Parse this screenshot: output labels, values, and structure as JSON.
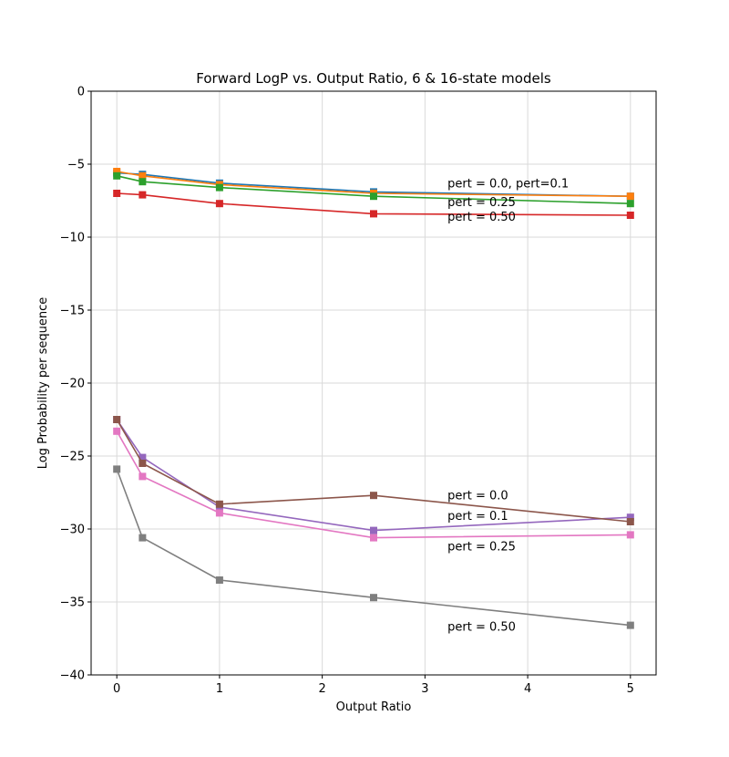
{
  "chart_data": {
    "type": "line",
    "title": "Forward LogP vs. Output Ratio, 6 & 16-state models",
    "xlabel": "Output Ratio",
    "ylabel": "Log Probability per sequence",
    "xlim": [
      -0.25,
      5.25
    ],
    "ylim": [
      -40,
      0
    ],
    "xticks": [
      0,
      1,
      2,
      3,
      4,
      5
    ],
    "yticks": [
      0,
      -5,
      -10,
      -15,
      -20,
      -25,
      -30,
      -35,
      -40
    ],
    "grid": true,
    "marker": "square",
    "x": [
      0,
      0.25,
      1,
      2.5,
      5
    ],
    "series": [
      {
        "color": "#1f77b4",
        "values": [
          -5.6,
          -5.7,
          -6.3,
          -6.9,
          -7.2
        ]
      },
      {
        "color": "#ff7f0e",
        "values": [
          -5.5,
          -5.8,
          -6.4,
          -7.0,
          -7.2
        ]
      },
      {
        "color": "#2ca02c",
        "values": [
          -5.8,
          -6.2,
          -6.6,
          -7.2,
          -7.7
        ]
      },
      {
        "color": "#d62728",
        "values": [
          -7.0,
          -7.1,
          -7.7,
          -8.4,
          -8.5
        ]
      },
      {
        "color": "#9467bd",
        "values": [
          -22.5,
          -25.1,
          -28.5,
          -30.1,
          -29.2
        ]
      },
      {
        "color": "#8c564b",
        "values": [
          -22.5,
          -25.5,
          -28.3,
          -27.7,
          -29.5
        ]
      },
      {
        "color": "#e377c2",
        "values": [
          -23.3,
          -26.4,
          -28.9,
          -30.6,
          -30.4
        ]
      },
      {
        "color": "#7f7f7f",
        "values": [
          -25.9,
          -30.6,
          -33.5,
          -34.7,
          -36.6
        ]
      }
    ],
    "annotations": [
      {
        "text": "pert = 0.0, pert=0.1",
        "x": 3.22,
        "y": -6.3
      },
      {
        "text": "pert = 0.25",
        "x": 3.22,
        "y": -7.6
      },
      {
        "text": "pert = 0.50",
        "x": 3.22,
        "y": -8.6
      },
      {
        "text": "pert = 0.0",
        "x": 3.22,
        "y": -27.7
      },
      {
        "text": "pert = 0.1",
        "x": 3.22,
        "y": -29.1
      },
      {
        "text": "pert = 0.25",
        "x": 3.22,
        "y": -31.2
      },
      {
        "text": "pert = 0.50",
        "x": 3.22,
        "y": -36.7
      }
    ]
  }
}
